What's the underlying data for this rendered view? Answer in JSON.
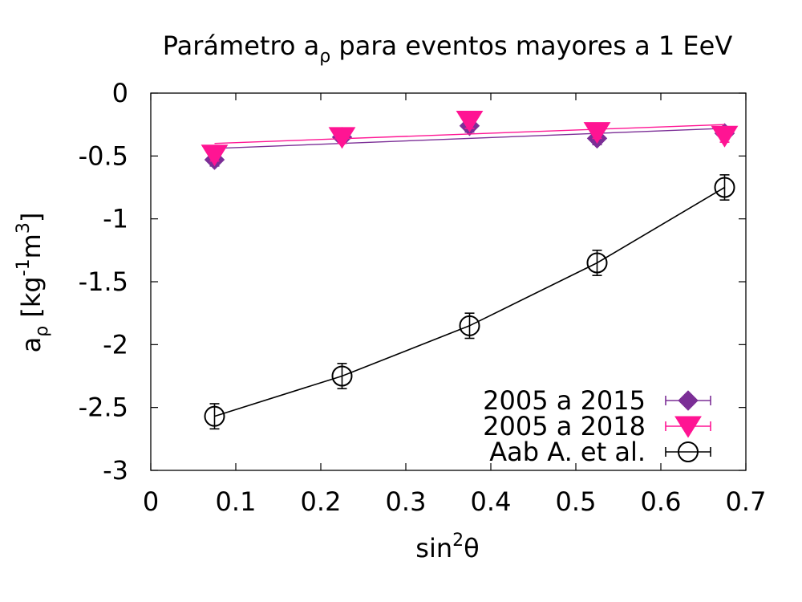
{
  "chart_data": {
    "type": "scatter",
    "title": {
      "main": "Parámetro a",
      "sub": "ρ",
      "tail": " para eventos mayores a 1 EeV"
    },
    "xlabel": {
      "base": "sin",
      "sup": "2",
      "tail": "θ"
    },
    "ylabel": {
      "base": "a",
      "sub": "ρ",
      "bracket_open": " [kg",
      "sup1": "-1",
      "mid": "m",
      "sup2": "3",
      "bracket_close": "]"
    },
    "xlim": [
      0,
      0.7
    ],
    "ylim": [
      -3,
      0
    ],
    "x_ticks": [
      0,
      0.1,
      0.2,
      0.3,
      0.4,
      0.5,
      0.6,
      0.7
    ],
    "x_tick_labels": [
      "0",
      "0.1",
      "0.2",
      "0.3",
      "0.4",
      "0.5",
      "0.6",
      "0.7"
    ],
    "y_ticks": [
      0,
      -0.5,
      -1,
      -1.5,
      -2,
      -2.5,
      -3
    ],
    "y_tick_labels": [
      "0",
      "-0.5",
      "-1",
      "-1.5",
      "-2",
      "-2.5",
      "-3"
    ],
    "grid": false,
    "legend_position": "bottom-right",
    "series": [
      {
        "name": "2005 a 2015",
        "color": "#7b2e96",
        "marker": "diamond",
        "x": [
          0.075,
          0.225,
          0.375,
          0.525,
          0.675
        ],
        "y": [
          -0.53,
          -0.35,
          -0.26,
          -0.36,
          -0.32
        ],
        "yerr": [
          0.05,
          0.05,
          0.05,
          0.05,
          0.05
        ],
        "fit": {
          "x": [
            0.075,
            0.675
          ],
          "y": [
            -0.44,
            -0.28
          ]
        }
      },
      {
        "name": "2005 a 2018",
        "color": "#ff1493",
        "marker": "triangle-down",
        "x": [
          0.075,
          0.225,
          0.375,
          0.525,
          0.675
        ],
        "y": [
          -0.49,
          -0.35,
          -0.22,
          -0.31,
          -0.34
        ],
        "yerr": [
          0.05,
          0.05,
          0.06,
          0.05,
          0.05
        ],
        "fit": {
          "x": [
            0.075,
            0.675
          ],
          "y": [
            -0.4,
            -0.25
          ]
        }
      },
      {
        "name": "Aab A. et al.",
        "color": "#000000",
        "marker": "circle-open",
        "x": [
          0.075,
          0.225,
          0.375,
          0.525,
          0.675
        ],
        "y": [
          -2.57,
          -2.25,
          -1.85,
          -1.35,
          -0.75
        ],
        "yerr": [
          0.1,
          0.1,
          0.1,
          0.1,
          0.1
        ],
        "fit": "curve"
      }
    ]
  }
}
